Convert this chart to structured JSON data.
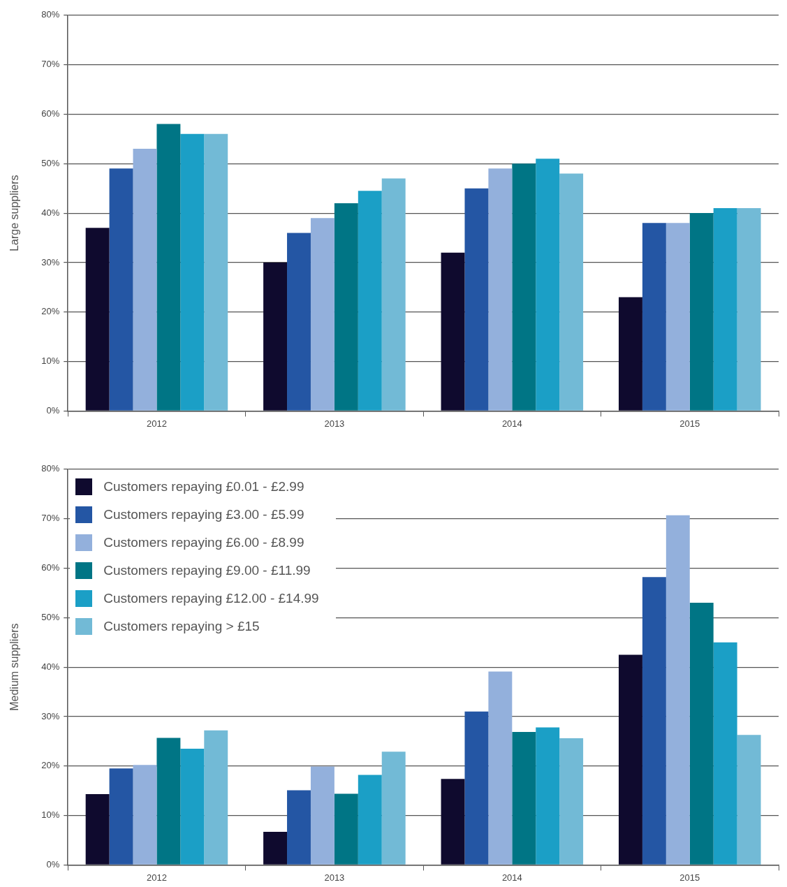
{
  "chart_data": [
    {
      "type": "bar",
      "ylabel": "Large suppliers",
      "categories": [
        "2012",
        "2013",
        "2014",
        "2015"
      ],
      "ylim": [
        0,
        80
      ],
      "yticks": [
        {
          "value": 0,
          "label": "0%"
        },
        {
          "value": 10,
          "label": "10%"
        },
        {
          "value": 20,
          "label": "20%"
        },
        {
          "value": 30,
          "label": "30%"
        },
        {
          "value": 40,
          "label": "40%"
        },
        {
          "value": 50,
          "label": "50%"
        },
        {
          "value": 60,
          "label": "60%"
        },
        {
          "value": 70,
          "label": "70%"
        },
        {
          "value": 80,
          "label": "80%"
        }
      ],
      "grid": "y",
      "legend": false,
      "series": [
        {
          "color": "#0f0a2e",
          "values": [
            37,
            30,
            32,
            23
          ]
        },
        {
          "color": "#2456a4",
          "values": [
            49,
            36,
            45,
            38
          ]
        },
        {
          "color": "#93b0dc",
          "values": [
            53,
            39,
            49,
            38
          ]
        },
        {
          "color": "#007585",
          "values": [
            58,
            42,
            50,
            40
          ]
        },
        {
          "color": "#1b9fc6",
          "values": [
            56,
            44.5,
            51,
            41
          ]
        },
        {
          "color": "#72bad6",
          "values": [
            56,
            47,
            48,
            41
          ]
        }
      ]
    },
    {
      "type": "bar",
      "ylabel": "Medium suppliers",
      "categories": [
        "2012",
        "2013",
        "2014",
        "2015"
      ],
      "ylim": [
        0,
        80
      ],
      "yticks": [
        {
          "value": 0,
          "label": "0%"
        },
        {
          "value": 10,
          "label": "10%"
        },
        {
          "value": 20,
          "label": "20%"
        },
        {
          "value": 30,
          "label": "30%"
        },
        {
          "value": 40,
          "label": "40%"
        },
        {
          "value": 50,
          "label": "50%"
        },
        {
          "value": 60,
          "label": "60%"
        },
        {
          "value": 70,
          "label": "70%"
        },
        {
          "value": 80,
          "label": "80%"
        }
      ],
      "grid": "y",
      "legend": "top left",
      "series": [
        {
          "name": "Customers repaying £0.01 - £2.99",
          "color": "#0f0a2e",
          "values": [
            14.3,
            6.7,
            17.4,
            42.5
          ]
        },
        {
          "name": "Customers repaying £3.00 - £5.99",
          "color": "#2456a4",
          "values": [
            19.5,
            15.1,
            31,
            58.2
          ]
        },
        {
          "name": "Customers repaying £6.00 - £8.99",
          "color": "#93b0dc",
          "values": [
            20.2,
            19.9,
            39.1,
            70.7
          ]
        },
        {
          "name": "Customers repaying £9.00 - £11.99",
          "color": "#007585",
          "values": [
            25.7,
            14.4,
            26.9,
            53
          ]
        },
        {
          "name": "Customers repaying £12.00 - £14.99",
          "color": "#1b9fc6",
          "values": [
            23.5,
            18.2,
            27.8,
            45
          ]
        },
        {
          "name": "Customers repaying > £15",
          "color": "#72bad6",
          "values": [
            27.2,
            22.9,
            25.6,
            26.3
          ]
        }
      ]
    }
  ]
}
